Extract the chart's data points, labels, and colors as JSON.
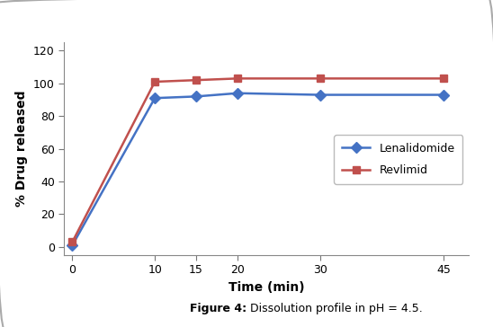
{
  "x": [
    0,
    10,
    15,
    20,
    30,
    45
  ],
  "lenalidomide_y": [
    1,
    91,
    92,
    94,
    93,
    93
  ],
  "revlimid_y": [
    3,
    101,
    102,
    103,
    103,
    103
  ],
  "lenalidomide_color": "#4472C4",
  "revlimid_color": "#C0504D",
  "xlabel": "Time (min)",
  "ylabel": "% Drug released",
  "xlim": [
    -1,
    48
  ],
  "ylim": [
    -5,
    125
  ],
  "yticks": [
    0,
    20,
    40,
    60,
    80,
    100,
    120
  ],
  "xticks": [
    0,
    10,
    15,
    20,
    30,
    45
  ],
  "legend_labels": [
    "Lenalidomide",
    "Revlimid"
  ],
  "caption_bold": "Figure 4:",
  "caption_normal": " Dissolution profile in pH = 4.5.",
  "background_color": "#ffffff",
  "border_color": "#aaaaaa",
  "line_width": 1.8,
  "marker_size": 6
}
